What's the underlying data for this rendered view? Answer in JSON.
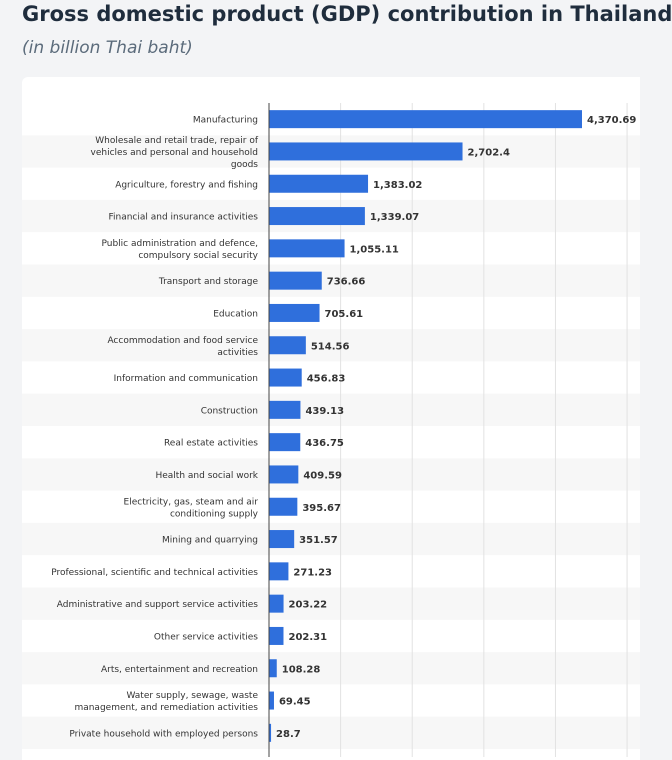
{
  "chart_data": {
    "type": "bar",
    "orientation": "horizontal",
    "title": "Gross domestic product (GDP) contribution in Thailand",
    "subtitle": "(in billion Thai baht)",
    "bar_color": "#2f6fdc",
    "categories": [
      "Manufacturing",
      "Wholesale and retail trade, repair of vehicles and personal and household goods",
      "Agriculture, forestry and fishing",
      "Financial and insurance activities",
      "Public administration and defence, compulsory social security",
      "Transport and storage",
      "Education",
      "Accommodation and food service activities",
      "Information and communication",
      "Construction",
      "Real estate activities",
      "Health and social work",
      "Electricity, gas, steam and air conditioning supply",
      "Mining and quarrying",
      "Professional, scientific and technical activities",
      "Administrative and support service activities",
      "Other service activities",
      "Arts, entertainment and recreation",
      "Water supply, sewage, waste management, and remediation activities",
      "Private household with employed persons"
    ],
    "label_lines": [
      [
        "Manufacturing"
      ],
      [
        "Wholesale and retail trade, repair of",
        "vehicles and personal and household",
        "goods"
      ],
      [
        "Agriculture, forestry and fishing"
      ],
      [
        "Financial and insurance activities"
      ],
      [
        "Public administration and defence,",
        "compulsory social security"
      ],
      [
        "Transport and storage"
      ],
      [
        "Education"
      ],
      [
        "Accommodation and food service",
        "activities"
      ],
      [
        "Information and communication"
      ],
      [
        "Construction"
      ],
      [
        "Real estate activities"
      ],
      [
        "Health and social work"
      ],
      [
        "Electricity, gas, steam and air",
        "conditioning supply"
      ],
      [
        "Mining and quarrying"
      ],
      [
        "Professional, scientific and technical activities"
      ],
      [
        "Administrative and support service activities"
      ],
      [
        "Other service activities"
      ],
      [
        "Arts, entertainment and recreation"
      ],
      [
        "Water supply, sewage, waste",
        "management, and remediation activities"
      ],
      [
        "Private household with employed persons"
      ]
    ],
    "values": [
      4370.69,
      2702.4,
      1383.02,
      1339.07,
      1055.11,
      736.66,
      705.61,
      514.56,
      456.83,
      439.13,
      436.75,
      409.59,
      395.67,
      351.57,
      271.23,
      203.22,
      202.31,
      108.28,
      69.45,
      28.7
    ],
    "value_labels": [
      "4,370.69",
      "2,702.4",
      "1,383.02",
      "1,339.07",
      "1,055.11",
      "736.66",
      "705.61",
      "514.56",
      "456.83",
      "439.13",
      "436.75",
      "409.59",
      "395.67",
      "351.57",
      "271.23",
      "203.22",
      "202.31",
      "108.28",
      "69.45",
      "28.7"
    ],
    "xlim": [
      0,
      5000
    ],
    "grid": true,
    "legend": "none"
  }
}
